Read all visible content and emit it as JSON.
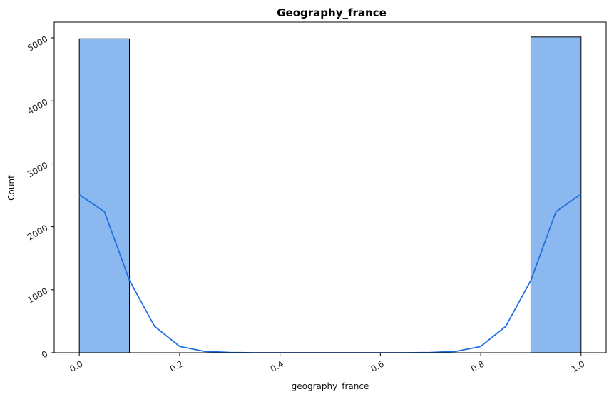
{
  "chart_data": {
    "type": "bar",
    "title": "Geography_france",
    "xlabel": "geography_france",
    "ylabel": "Count",
    "xlim": [
      -0.05,
      1.05
    ],
    "ylim": [
      0,
      5250
    ],
    "xticks": [
      0.0,
      0.2,
      0.4,
      0.6,
      0.8,
      1.0
    ],
    "xtick_labels": [
      "0.0",
      "0.2",
      "0.4",
      "0.6",
      "0.8",
      "1.0"
    ],
    "yticks": [
      0,
      1000,
      2000,
      3000,
      4000,
      5000
    ],
    "ytick_labels": [
      "0",
      "1000",
      "2000",
      "3000",
      "4000",
      "5000"
    ],
    "tick_label_rotation": 30,
    "grid": false,
    "legend": "none",
    "bars": [
      {
        "x0": 0.0,
        "x1": 0.1,
        "value": 4986
      },
      {
        "x0": 0.9,
        "x1": 1.0,
        "value": 5014
      }
    ],
    "kde": {
      "x": [
        0.0,
        0.05,
        0.1,
        0.15,
        0.2,
        0.25,
        0.3,
        0.35,
        0.4,
        0.5,
        0.6,
        0.65,
        0.7,
        0.75,
        0.8,
        0.85,
        0.9,
        0.95,
        1.0
      ],
      "y": [
        2510,
        2240,
        1150,
        420,
        100,
        20,
        3,
        0,
        0,
        0,
        0,
        0,
        3,
        20,
        100,
        420,
        1150,
        2240,
        2520
      ]
    },
    "colors": {
      "bar_fill": "#8cb8f0",
      "bar_edge": "#000000",
      "kde_line": "#1f6fde"
    }
  }
}
